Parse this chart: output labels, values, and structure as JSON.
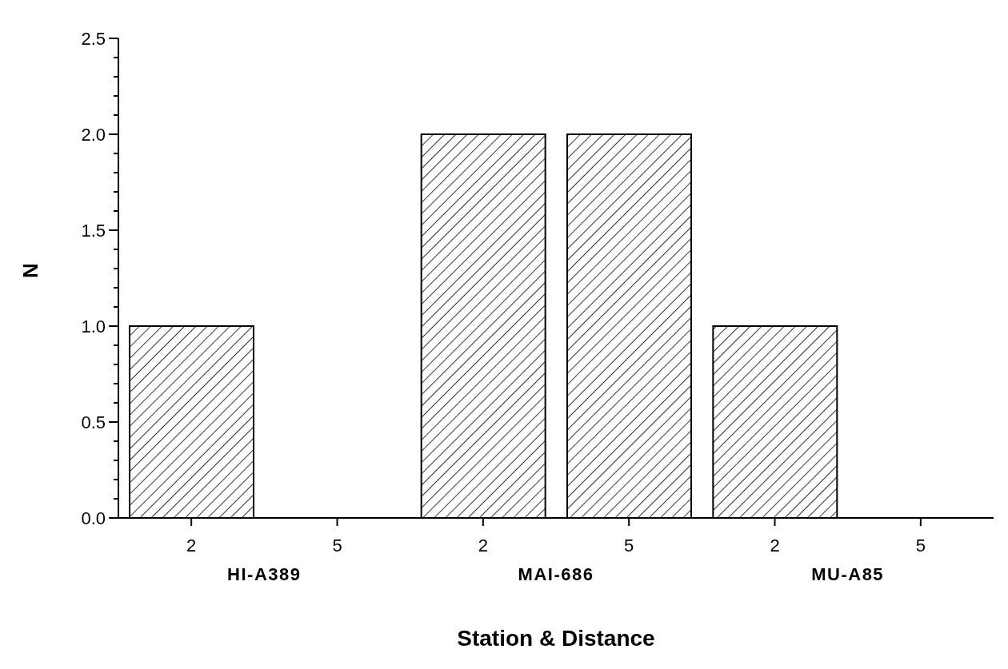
{
  "chart_data": {
    "type": "bar",
    "xlabel": "Station & Distance",
    "ylabel": "N",
    "categories": [
      "2",
      "5",
      "2",
      "5",
      "2",
      "5"
    ],
    "values": [
      1,
      0,
      2,
      2,
      1,
      0
    ],
    "color": "#000000",
    "annotations": [
      "HI-A389",
      "MAI-686",
      "MU-A85"
    ],
    "ylim": [
      0,
      2.5
    ],
    "yticks": [
      {
        "value": 0,
        "label": "0.0"
      },
      {
        "value": 0.1,
        "label": null
      },
      {
        "value": 0.2,
        "label": null
      },
      {
        "value": 0.3,
        "label": null
      },
      {
        "value": 0.4,
        "label": null
      },
      {
        "value": 0.5,
        "label": "0.5"
      },
      {
        "value": 0.6,
        "label": null
      },
      {
        "value": 0.7,
        "label": null
      },
      {
        "value": 0.8,
        "label": null
      },
      {
        "value": 0.9,
        "label": null
      },
      {
        "value": 1,
        "label": "1.0"
      },
      {
        "value": 1.1,
        "label": null
      },
      {
        "value": 1.2,
        "label": null
      },
      {
        "value": 1.3,
        "label": null
      },
      {
        "value": 1.4,
        "label": null
      },
      {
        "value": 1.5,
        "label": "1.5"
      },
      {
        "value": 1.6,
        "label": null
      },
      {
        "value": 1.7,
        "label": null
      },
      {
        "value": 1.8,
        "label": null
      },
      {
        "value": 1.9,
        "label": null
      },
      {
        "value": 2,
        "label": "2.0"
      },
      {
        "value": 2.1,
        "label": null
      },
      {
        "value": 2.2,
        "label": null
      },
      {
        "value": 2.3,
        "label": null
      },
      {
        "value": 2.4,
        "label": null
      },
      {
        "value": 2.5,
        "label": "2.5"
      }
    ],
    "grid": false
  }
}
